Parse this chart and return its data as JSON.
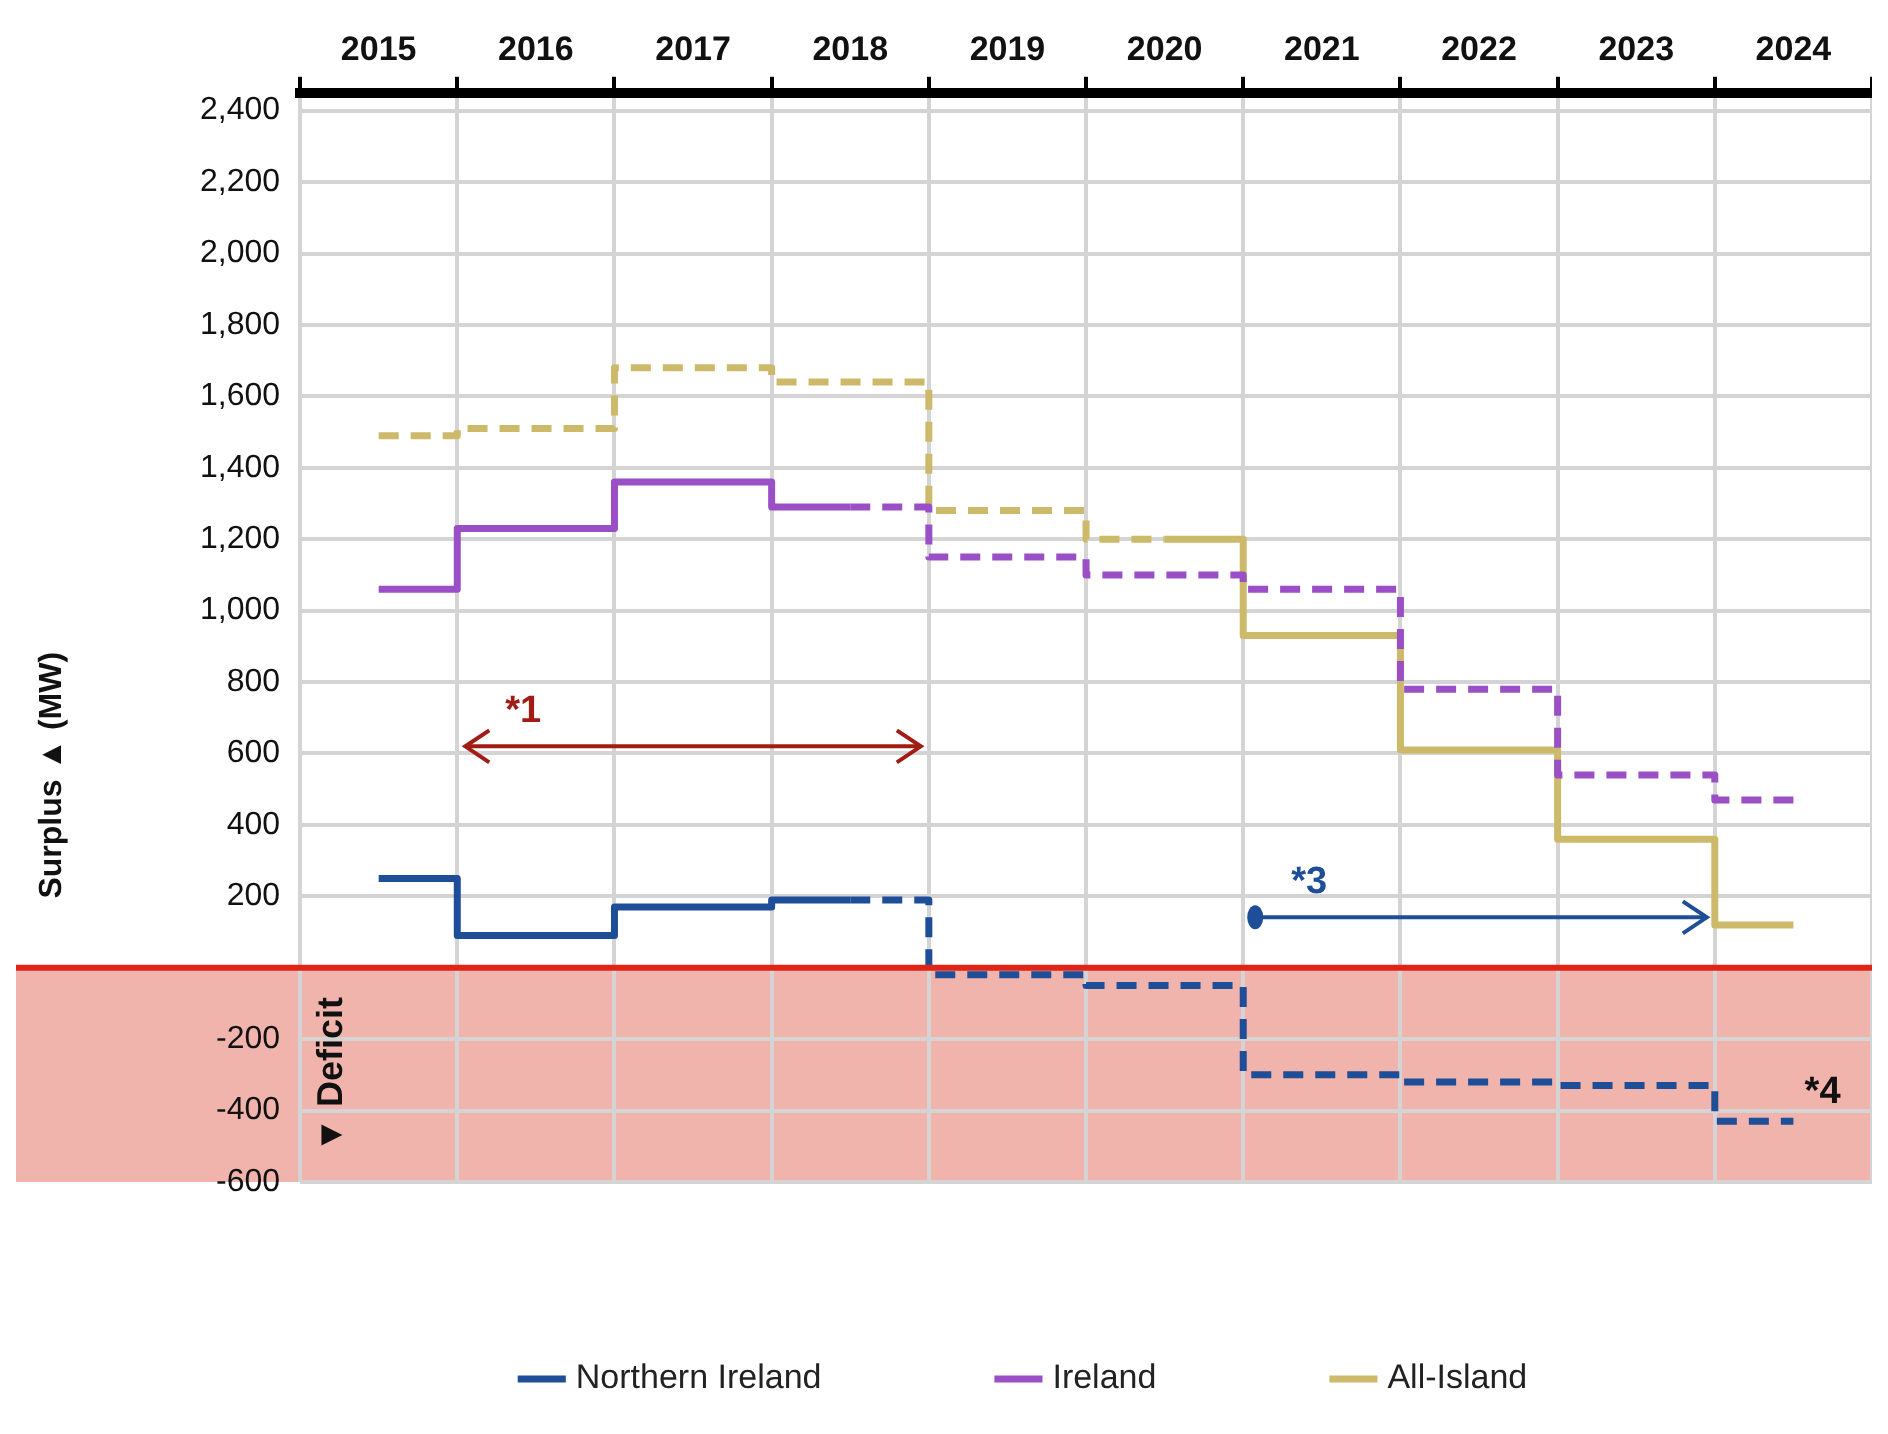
{
  "chart_data": {
    "type": "step",
    "ylabel": "Surplus ▲ (MW)",
    "categories": [
      "2015",
      "2016",
      "2017",
      "2018",
      "2019",
      "2020",
      "2021",
      "2022",
      "2023",
      "2024"
    ],
    "series": [
      {
        "name": "Northern Ireland",
        "color": "#1f4e99",
        "line_style": [
          "solid",
          "solid",
          "solid",
          "solid",
          "dashed",
          "dashed",
          "dashed",
          "dashed",
          "dashed",
          "dashed"
        ],
        "values": [
          250,
          90,
          170,
          190,
          -20,
          -50,
          -300,
          -320,
          -330,
          -430
        ]
      },
      {
        "name": "Ireland",
        "color": "#9b4fc6",
        "line_style": [
          "solid",
          "solid",
          "solid",
          "solid",
          "dashed",
          "dashed",
          "dashed",
          "dashed",
          "dashed",
          "dashed"
        ],
        "values": [
          1060,
          1230,
          1360,
          1290,
          1150,
          1100,
          1060,
          780,
          540,
          470
        ]
      },
      {
        "name": "All-Island",
        "color": "#cdb96a",
        "line_style": [
          "dashed",
          "dashed",
          "dashed",
          "dashed",
          "dashed",
          "solid",
          "solid",
          "solid",
          "solid",
          "solid"
        ],
        "values": [
          1490,
          1510,
          1680,
          1640,
          1280,
          1200,
          930,
          610,
          360,
          120
        ]
      }
    ],
    "ylim": [
      -600,
      2450
    ],
    "yticks": [
      {
        "value": -600,
        "label": "-600"
      },
      {
        "value": -400,
        "label": "-400"
      },
      {
        "value": -200,
        "label": "-200"
      },
      {
        "value": 0,
        "label": null
      },
      {
        "value": 200,
        "label": "200"
      },
      {
        "value": 400,
        "label": "400"
      },
      {
        "value": 600,
        "label": "600"
      },
      {
        "value": 800,
        "label": "800"
      },
      {
        "value": 1000,
        "label": "1,000"
      },
      {
        "value": 1200,
        "label": "1,200"
      },
      {
        "value": 1400,
        "label": "1,400"
      },
      {
        "value": 1600,
        "label": "1,600"
      },
      {
        "value": 1800,
        "label": "1,800"
      },
      {
        "value": 2000,
        "label": "2,000"
      },
      {
        "value": 2200,
        "label": "2,200"
      },
      {
        "value": 2400,
        "label": "2,400"
      }
    ],
    "bands": [
      {
        "axis": "y",
        "from": -600,
        "to": 0,
        "label": "▼ Deficit",
        "color": "#f0b4ac"
      }
    ],
    "ref_lines": [
      {
        "axis": "y",
        "value": 0,
        "color": "#e02418"
      }
    ],
    "annotations": [
      "*1",
      "*3",
      "*4"
    ],
    "grid": true,
    "legend": "bottom"
  }
}
